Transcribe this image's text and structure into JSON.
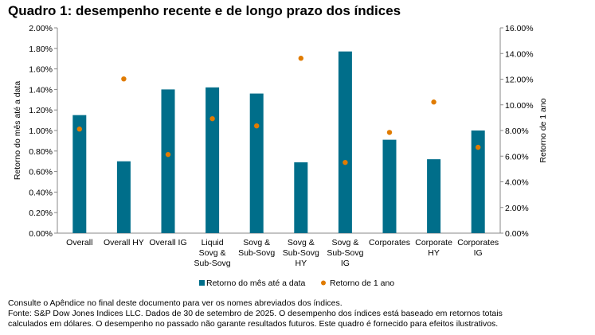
{
  "title": "Quadro 1: desempenho recente e de longo prazo dos índices",
  "chart_data": {
    "type": "bar",
    "categories": [
      [
        "Overall"
      ],
      [
        "Overall HY"
      ],
      [
        "Overall IG"
      ],
      [
        "Liquid",
        "Sovg &",
        "Sub-Sovg"
      ],
      [
        "Sovg &",
        "Sub-Sovg"
      ],
      [
        "Sovg &",
        "Sub-Sovg",
        "HY"
      ],
      [
        "Sovg &",
        "Sub-Sovg",
        "IG"
      ],
      [
        "Corporates"
      ],
      [
        "Corporate",
        "HY"
      ],
      [
        "Corporates",
        "IG"
      ]
    ],
    "ylabel": "Retorno do mês até a data",
    "y2label": "Retorno de 1 ano",
    "ylim": [
      0,
      2.0
    ],
    "y2lim": [
      0,
      16.0
    ],
    "yticks": [
      "0.00%",
      "0.20%",
      "0.40%",
      "0.60%",
      "0.80%",
      "1.00%",
      "1.20%",
      "1.40%",
      "1.60%",
      "1.80%",
      "2.00%"
    ],
    "y2ticks": [
      "0.00%",
      "2.00%",
      "4.00%",
      "6.00%",
      "8.00%",
      "10.00%",
      "12.00%",
      "14.00%",
      "16.00%"
    ],
    "grid": false,
    "legend_position": "bottom",
    "series": [
      {
        "name": "Retorno do mês até a data",
        "type": "bar",
        "axis": "left",
        "color": "#006e8a",
        "values": [
          1.15,
          0.7,
          1.4,
          1.42,
          1.36,
          0.69,
          1.77,
          0.91,
          0.72,
          1.0
        ]
      },
      {
        "name": "Retorno de 1 ano",
        "type": "scatter",
        "axis": "right",
        "color": "#e07b00",
        "values": [
          8.11,
          12.02,
          6.13,
          8.92,
          8.36,
          13.63,
          5.51,
          7.85,
          10.22,
          6.69
        ]
      }
    ]
  },
  "notes": [
    "Consulte o Apêndice no final deste documento para ver os nomes abreviados dos índices.",
    "Fonte: S&P Dow Jones Indices LLC. Dados de 30 de setembro de 2025. O desempenho dos índices está baseado em retornos totais",
    "calculados em dólares. O desempenho no passado não garante resultados futuros. Este quadro é fornecido para efeitos ilustrativos."
  ]
}
